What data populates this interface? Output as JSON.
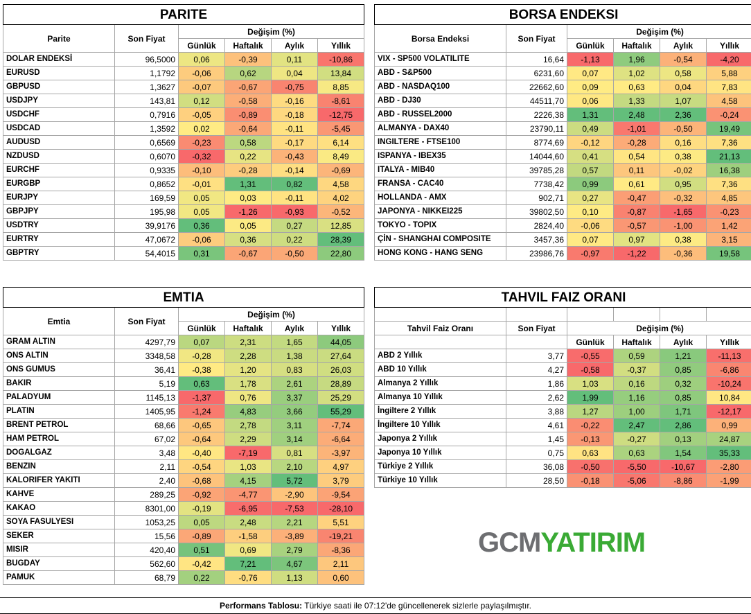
{
  "footer": {
    "label": "Performans Tablosu:",
    "text": "Türkiye saati ile 07:12'de güncellenerek sizlerle paylaşılmıştır."
  },
  "logo": {
    "part1": "GCM",
    "part2": "YATIRIM"
  },
  "col_headers": {
    "change": "Değişim (%)",
    "daily": "Günlük",
    "weekly": "Haftalık",
    "monthly": "Aylık",
    "yearly": "Yıllık",
    "price": "Son Fiyat"
  },
  "tables": [
    {
      "id": "parite",
      "title": "PARITE",
      "name_header": "Parite",
      "rows": [
        {
          "name": "DOLAR ENDEKSİ",
          "price": "96,5000",
          "d": "0,06",
          "w": "-0,39",
          "m": "0,11",
          "y": "-10,86"
        },
        {
          "name": "EURUSD",
          "price": "1,1792",
          "d": "-0,06",
          "w": "0,62",
          "m": "0,04",
          "y": "13,84"
        },
        {
          "name": "GBPUSD",
          "price": "1,3627",
          "d": "-0,07",
          "w": "-0,67",
          "m": "-0,75",
          "y": "8,85"
        },
        {
          "name": "USDJPY",
          "price": "143,81",
          "d": "0,12",
          "w": "-0,58",
          "m": "-0,16",
          "y": "-8,61"
        },
        {
          "name": "USDCHF",
          "price": "0,7916",
          "d": "-0,05",
          "w": "-0,89",
          "m": "-0,18",
          "y": "-12,75"
        },
        {
          "name": "USDCAD",
          "price": "1,3592",
          "d": "0,02",
          "w": "-0,64",
          "m": "-0,11",
          "y": "-5,45"
        },
        {
          "name": "AUDUSD",
          "price": "0,6569",
          "d": "-0,23",
          "w": "0,58",
          "m": "-0,17",
          "y": "6,14"
        },
        {
          "name": "NZDUSD",
          "price": "0,6070",
          "d": "-0,32",
          "w": "0,22",
          "m": "-0,43",
          "y": "8,49"
        },
        {
          "name": "EURCHF",
          "price": "0,9335",
          "d": "-0,10",
          "w": "-0,28",
          "m": "-0,14",
          "y": "-0,69"
        },
        {
          "name": "EURGBP",
          "price": "0,8652",
          "d": "-0,01",
          "w": "1,31",
          "m": "0,82",
          "y": "4,58"
        },
        {
          "name": "EURJPY",
          "price": "169,59",
          "d": "0,05",
          "w": "0,03",
          "m": "-0,11",
          "y": "4,02"
        },
        {
          "name": "GBPJPY",
          "price": "195,98",
          "d": "0,05",
          "w": "-1,26",
          "m": "-0,93",
          "y": "-0,52"
        },
        {
          "name": "USDTRY",
          "price": "39,9176",
          "d": "0,36",
          "w": "0,05",
          "m": "0,27",
          "y": "12,85"
        },
        {
          "name": "EURTRY",
          "price": "47,0672",
          "d": "-0,06",
          "w": "0,36",
          "m": "0,22",
          "y": "28,39"
        },
        {
          "name": "GBPTRY",
          "price": "54,4015",
          "d": "0,31",
          "w": "-0,67",
          "m": "-0,50",
          "y": "22,80"
        }
      ]
    },
    {
      "id": "borsa",
      "title": "BORSA ENDEKSI",
      "name_header": "Borsa Endeksi",
      "rows": [
        {
          "name": "VIX  - SP500 VOLATILITE",
          "price": "16,64",
          "d": "-1,13",
          "w": "1,96",
          "m": "-0,54",
          "y": "-4,20"
        },
        {
          "name": "ABD - S&P500",
          "price": "6231,60",
          "d": "0,07",
          "w": "1,02",
          "m": "0,58",
          "y": "5,88"
        },
        {
          "name": "ABD - NASDAQ100",
          "price": "22662,60",
          "d": "0,09",
          "w": "0,63",
          "m": "0,04",
          "y": "7,83"
        },
        {
          "name": "ABD - DJ30",
          "price": "44511,70",
          "d": "0,06",
          "w": "1,33",
          "m": "1,07",
          "y": "4,58"
        },
        {
          "name": "ABD - RUSSEL2000",
          "price": "2226,38",
          "d": "1,31",
          "w": "2,48",
          "m": "2,36",
          "y": "-0,24"
        },
        {
          "name": "ALMANYA - DAX40",
          "price": "23790,11",
          "d": "0,49",
          "w": "-1,01",
          "m": "-0,50",
          "y": "19,49"
        },
        {
          "name": "INGILTERE - FTSE100",
          "price": "8774,69",
          "d": "-0,12",
          "w": "-0,28",
          "m": "0,16",
          "y": "7,36"
        },
        {
          "name": "ISPANYA - IBEX35",
          "price": "14044,60",
          "d": "0,41",
          "w": "0,54",
          "m": "0,38",
          "y": "21,13"
        },
        {
          "name": "ITALYA - MIB40",
          "price": "39785,28",
          "d": "0,57",
          "w": "0,11",
          "m": "-0,02",
          "y": "16,38"
        },
        {
          "name": "FRANSA - CAC40",
          "price": "7738,42",
          "d": "0,99",
          "w": "0,61",
          "m": "0,95",
          "y": "7,36"
        },
        {
          "name": "HOLLANDA - AMX",
          "price": "902,71",
          "d": "0,27",
          "w": "-0,47",
          "m": "-0,32",
          "y": "4,85"
        },
        {
          "name": "JAPONYA - NIKKEI225",
          "price": "39802,50",
          "d": "0,10",
          "w": "-0,87",
          "m": "-1,65",
          "y": "-0,23"
        },
        {
          "name": "TOKYO - TOPIX",
          "price": "2824,40",
          "d": "-0,06",
          "w": "-0,57",
          "m": "-1,00",
          "y": "1,42"
        },
        {
          "name": "ÇİN - SHANGHAI COMPOSITE",
          "price": "3457,36",
          "d": "0,07",
          "w": "0,97",
          "m": "0,38",
          "y": "3,15"
        },
        {
          "name": "HONG KONG - HANG SENG",
          "price": "23986,76",
          "d": "-0,97",
          "w": "-1,22",
          "m": "-0,36",
          "y": "19,58"
        }
      ]
    },
    {
      "id": "emtia",
      "title": "EMTIA",
      "name_header": "Emtia",
      "rows": [
        {
          "name": "GRAM ALTIN",
          "price": "4297,79",
          "d": "0,07",
          "w": "2,31",
          "m": "1,65",
          "y": "44,05"
        },
        {
          "name": "ONS ALTIN",
          "price": "3348,58",
          "d": "-0,28",
          "w": "2,28",
          "m": "1,38",
          "y": "27,64"
        },
        {
          "name": "ONS GUMUS",
          "price": "36,41",
          "d": "-0,38",
          "w": "1,20",
          "m": "0,83",
          "y": "26,03"
        },
        {
          "name": "BAKIR",
          "price": "5,19",
          "d": "0,63",
          "w": "1,78",
          "m": "2,61",
          "y": "28,89"
        },
        {
          "name": "PALADYUM",
          "price": "1145,13",
          "d": "-1,37",
          "w": "0,76",
          "m": "3,37",
          "y": "25,29"
        },
        {
          "name": "PLATIN",
          "price": "1405,95",
          "d": "-1,24",
          "w": "4,83",
          "m": "3,66",
          "y": "55,29"
        },
        {
          "name": "BRENT PETROL",
          "price": "68,66",
          "d": "-0,65",
          "w": "2,78",
          "m": "3,11",
          "y": "-7,74"
        },
        {
          "name": "HAM PETROL",
          "price": "67,02",
          "d": "-0,64",
          "w": "2,29",
          "m": "3,14",
          "y": "-6,64"
        },
        {
          "name": "DOGALGAZ",
          "price": "3,48",
          "d": "-0,40",
          "w": "-7,19",
          "m": "0,81",
          "y": "-3,97"
        },
        {
          "name": "BENZIN",
          "price": "2,11",
          "d": "-0,54",
          "w": "1,03",
          "m": "2,10",
          "y": "4,97"
        },
        {
          "name": "KALORIFER YAKITI",
          "price": "2,40",
          "d": "-0,68",
          "w": "4,15",
          "m": "5,72",
          "y": "3,79"
        },
        {
          "name": "KAHVE",
          "price": "289,25",
          "d": "-0,92",
          "w": "-4,77",
          "m": "-2,90",
          "y": "-9,54"
        },
        {
          "name": "KAKAO",
          "price": "8301,00",
          "d": "-0,19",
          "w": "-6,95",
          "m": "-7,53",
          "y": "-28,10"
        },
        {
          "name": "SOYA FASULYESI",
          "price": "1053,25",
          "d": "0,05",
          "w": "2,48",
          "m": "2,21",
          "y": "5,51"
        },
        {
          "name": "SEKER",
          "price": "15,56",
          "d": "-0,89",
          "w": "-1,58",
          "m": "-3,89",
          "y": "-19,21"
        },
        {
          "name": "MISIR",
          "price": "420,40",
          "d": "0,51",
          "w": "0,69",
          "m": "2,79",
          "y": "-8,36"
        },
        {
          "name": "BUGDAY",
          "price": "562,60",
          "d": "-0,42",
          "w": "7,21",
          "m": "4,67",
          "y": "2,11"
        },
        {
          "name": "PAMUK",
          "price": "68,79",
          "d": "0,22",
          "w": "-0,76",
          "m": "1,13",
          "y": "0,60"
        }
      ]
    },
    {
      "id": "tahvil",
      "title": "TAHVIL FAIZ ORANI",
      "name_header": "Tahvil Faiz Oranı",
      "rows": [
        {
          "name": "ABD 2 Yıllık",
          "price": "3,77",
          "d": "-0,55",
          "w": "0,59",
          "m": "1,21",
          "y": "-11,13"
        },
        {
          "name": "ABD 10 Yıllık",
          "price": "4,27",
          "d": "-0,58",
          "w": "-0,37",
          "m": "0,85",
          "y": "-6,86"
        },
        {
          "name": "Almanya 2 Yıllık",
          "price": "1,86",
          "d": "1,03",
          "w": "0,16",
          "m": "0,32",
          "y": "-10,24"
        },
        {
          "name": "Almanya 10 Yıllık",
          "price": "2,62",
          "d": "1,99",
          "w": "1,16",
          "m": "0,85",
          "y": "10,84"
        },
        {
          "name": "İngiltere 2 Yıllık",
          "price": "3,88",
          "d": "1,27",
          "w": "1,00",
          "m": "1,71",
          "y": "-12,17"
        },
        {
          "name": "İngiltere 10 Yıllık",
          "price": "4,61",
          "d": "-0,22",
          "w": "2,47",
          "m": "2,86",
          "y": "0,99"
        },
        {
          "name": "Japonya 2 Yıllık",
          "price": "1,45",
          "d": "-0,13",
          "w": "-0,27",
          "m": "0,13",
          "y": "24,87"
        },
        {
          "name": "Japonya 10 Yıllık",
          "price": "0,75",
          "d": "0,63",
          "w": "0,63",
          "m": "1,54",
          "y": "35,33"
        },
        {
          "name": "Türkiye 2 Yıllık",
          "price": "36,08",
          "d": "-0,50",
          "w": "-5,50",
          "m": "-10,67",
          "y": "-2,80"
        },
        {
          "name": "Türkiye 10 Yıllık",
          "price": "28,50",
          "d": "-0,18",
          "w": "-5,06",
          "m": "-8,86",
          "y": "-1,99"
        }
      ]
    }
  ],
  "colors": {
    "red": "#f8696b",
    "yellow": "#ffeb84",
    "green": "#63be7b",
    "text": "#000000"
  }
}
